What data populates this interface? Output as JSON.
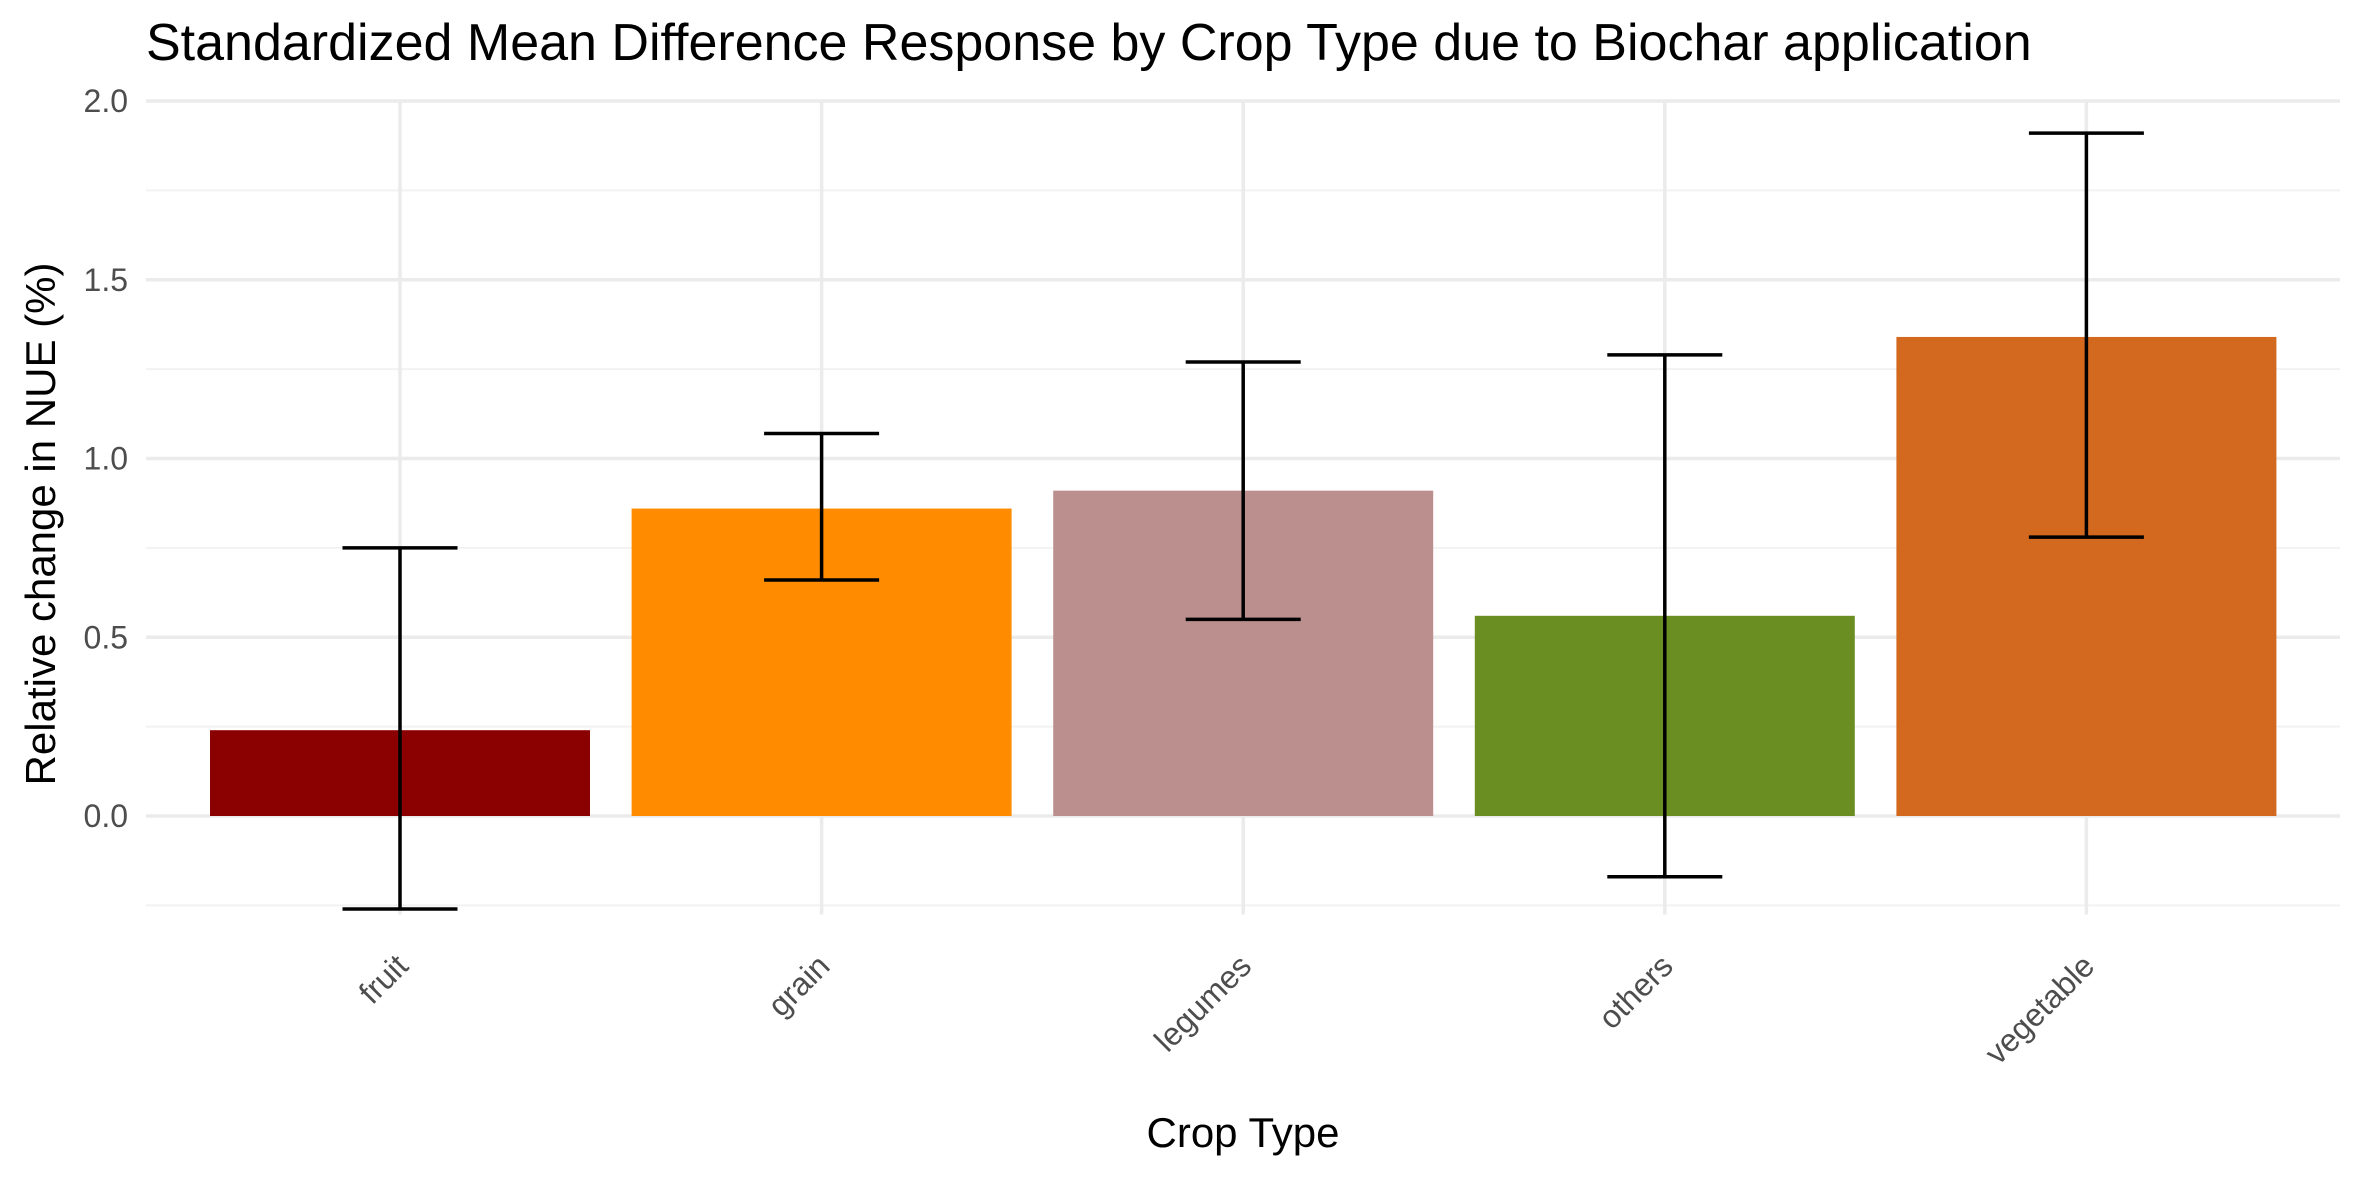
{
  "chart_data": {
    "type": "bar",
    "title": "Standardized Mean Difference Response by Crop Type due to Biochar application",
    "xlabel": "Crop Type",
    "ylabel": "Relative change in NUE (%)",
    "categories": [
      "fruit",
      "grain",
      "legumes",
      "others",
      "vegetable"
    ],
    "values": [
      0.24,
      0.86,
      0.91,
      0.56,
      1.34
    ],
    "error_lower": [
      -0.26,
      0.66,
      0.55,
      -0.17,
      0.78
    ],
    "error_upper": [
      0.75,
      1.07,
      1.27,
      1.29,
      1.91
    ],
    "colors": [
      "#8b0000",
      "#ff8c00",
      "#bc8f8f",
      "#6b8e23",
      "#d2691e"
    ],
    "ylim": [
      -0.27,
      2.0
    ],
    "yticks": [
      0.0,
      0.5,
      1.0,
      1.5,
      2.0
    ],
    "ytick_labels": [
      "0.0",
      "0.5",
      "1.0",
      "1.5",
      "2.0"
    ],
    "grid": true,
    "legend": "none"
  }
}
